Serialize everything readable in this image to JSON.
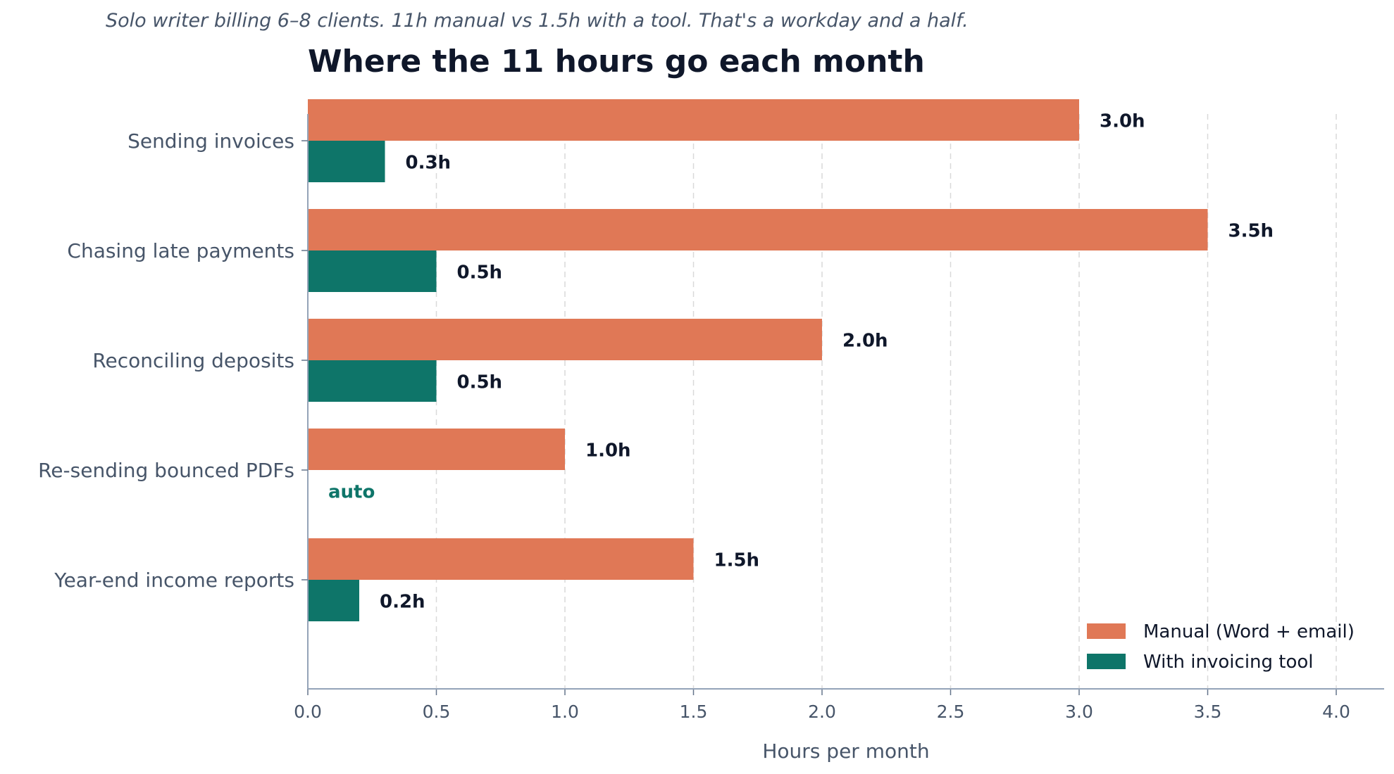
{
  "subtitle": "Solo writer billing 6–8 clients. 11h manual vs 1.5h with a tool. That's a workday and a half.",
  "title": "Where the 11 hours go each month",
  "chart_data": {
    "type": "bar",
    "orientation": "horizontal",
    "categories": [
      "Sending invoices",
      "Chasing late payments",
      "Reconciling deposits",
      "Re-sending bounced PDFs",
      "Year-end income reports"
    ],
    "series": [
      {
        "name": "Manual (Word + email)",
        "color": "#e07856",
        "values": [
          3.0,
          3.5,
          2.0,
          1.0,
          1.5
        ],
        "labels": [
          "3.0h",
          "3.5h",
          "2.0h",
          "1.0h",
          "1.5h"
        ]
      },
      {
        "name": "With invoicing tool",
        "color": "#0e7569",
        "values": [
          0.3,
          0.5,
          0.5,
          0,
          0.2
        ],
        "labels": [
          "0.3h",
          "0.5h",
          "0.5h",
          "auto",
          "0.2h"
        ]
      }
    ],
    "xlabel": "Hours per month",
    "ylabel": "",
    "xlim": [
      0,
      4.2
    ],
    "xticks": [
      "0.0",
      "0.5",
      "1.0",
      "1.5",
      "2.0",
      "2.5",
      "3.0",
      "3.5",
      "4.0"
    ],
    "grid": "vertical dashed",
    "legend_position": "bottom-right"
  }
}
